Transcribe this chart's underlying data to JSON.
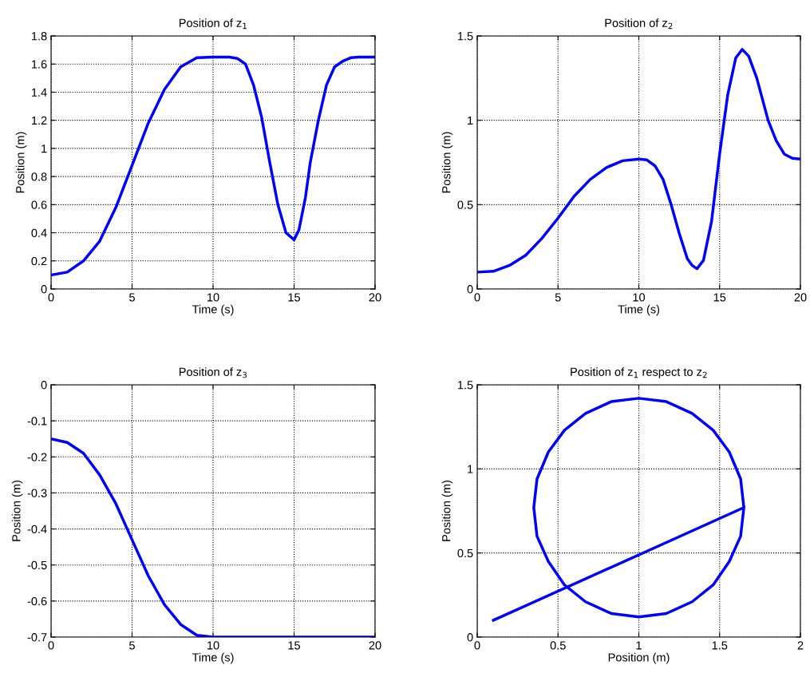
{
  "chart_data": [
    {
      "type": "line",
      "title": "Position of z$_{1}$",
      "xlabel": "Time (s)",
      "ylabel": "Position (m)",
      "x": [
        0,
        1,
        2,
        3,
        4,
        5,
        6,
        7,
        8,
        9,
        10,
        11,
        11.5,
        12,
        12.5,
        13,
        13.5,
        14,
        14.5,
        15,
        15.3,
        15.7,
        16,
        16.5,
        17,
        17.5,
        18,
        18.5,
        19,
        20
      ],
      "series": [
        {
          "color": "#0000ff",
          "values": [
            0.1,
            0.12,
            0.2,
            0.34,
            0.58,
            0.88,
            1.18,
            1.42,
            1.58,
            1.645,
            1.65,
            1.65,
            1.64,
            1.6,
            1.45,
            1.22,
            0.9,
            0.6,
            0.4,
            0.35,
            0.42,
            0.65,
            0.9,
            1.2,
            1.45,
            1.58,
            1.62,
            1.645,
            1.65,
            1.65
          ]
        }
      ],
      "xlim": [
        0,
        20
      ],
      "xticks": [
        0,
        5,
        10,
        15,
        20
      ],
      "ylim": [
        0,
        1.8
      ],
      "yticks": [
        0,
        0.2,
        0.4,
        0.6,
        0.8,
        1,
        1.2,
        1.4,
        1.6,
        1.8
      ],
      "grid": true,
      "line_style": "solid"
    },
    {
      "type": "line",
      "title": "Position of z$_{2}$",
      "xlabel": "Time (s)",
      "ylabel": "Position (m)",
      "x": [
        0,
        1,
        2,
        3,
        4,
        5,
        6,
        7,
        8,
        9,
        10,
        10.5,
        11,
        11.5,
        12,
        12.5,
        13,
        13.3,
        13.6,
        14,
        14.5,
        15,
        15.5,
        16,
        16.4,
        16.8,
        17.3,
        18,
        18.5,
        19,
        19.5,
        20
      ],
      "series": [
        {
          "color": "#0000ff",
          "values": [
            0.1,
            0.105,
            0.14,
            0.2,
            0.3,
            0.42,
            0.55,
            0.65,
            0.72,
            0.76,
            0.77,
            0.765,
            0.73,
            0.65,
            0.5,
            0.33,
            0.18,
            0.14,
            0.12,
            0.17,
            0.4,
            0.8,
            1.15,
            1.37,
            1.42,
            1.38,
            1.25,
            1.0,
            0.88,
            0.8,
            0.775,
            0.77
          ]
        }
      ],
      "xlim": [
        0,
        20
      ],
      "xticks": [
        0,
        5,
        10,
        15,
        20
      ],
      "ylim": [
        0,
        1.5
      ],
      "yticks": [
        0,
        0.5,
        1,
        1.5
      ],
      "grid": true,
      "line_style": "solid"
    },
    {
      "type": "line",
      "title": "Position of z$_{3}$",
      "xlabel": "Time (s)",
      "ylabel": "Position (m)",
      "x": [
        0,
        1,
        2,
        3,
        4,
        5,
        6,
        7,
        8,
        9,
        10,
        20
      ],
      "series": [
        {
          "color": "#0000ff",
          "values": [
            -0.15,
            -0.16,
            -0.19,
            -0.25,
            -0.33,
            -0.43,
            -0.53,
            -0.61,
            -0.665,
            -0.695,
            -0.7,
            -0.7
          ]
        }
      ],
      "xlim": [
        0,
        20
      ],
      "xticks": [
        0,
        5,
        10,
        15,
        20
      ],
      "ylim": [
        -0.7,
        0
      ],
      "yticks": [
        {
          "value": -0.7,
          "label": "-0.7"
        },
        {
          "value": -0.6,
          "label": "-0.6"
        },
        {
          "value": -0.5,
          "label": "-0.5"
        },
        {
          "value": -0.4,
          "label": "-0.4"
        },
        {
          "value": -0.3,
          "label": "-0.3"
        },
        {
          "value": -0.2,
          "label": "-0.2"
        },
        {
          "value": -0.1,
          "label": "-0.1"
        },
        0
      ],
      "grid": true,
      "line_style": "solid"
    },
    {
      "type": "line",
      "title": "Position of z$_{1}$ respect to z$_{2}$",
      "xlabel": "Position (m)",
      "ylabel": "Position (m)",
      "x": [
        0.1,
        1.65,
        1.63,
        1.56,
        1.46,
        1.33,
        1.17,
        1.0,
        0.83,
        0.67,
        0.54,
        0.44,
        0.37,
        0.35,
        0.37,
        0.44,
        0.54,
        0.67,
        0.83,
        1.0,
        1.17,
        1.33,
        1.46,
        1.56,
        1.63,
        1.65
      ],
      "series": [
        {
          "color": "#0000ff",
          "values": [
            0.1,
            0.77,
            0.94,
            1.1,
            1.23,
            1.33,
            1.4,
            1.42,
            1.4,
            1.33,
            1.23,
            1.1,
            0.94,
            0.77,
            0.6,
            0.45,
            0.31,
            0.21,
            0.14,
            0.12,
            0.14,
            0.21,
            0.31,
            0.45,
            0.6,
            0.77
          ]
        }
      ],
      "xlim": [
        0,
        2
      ],
      "xticks": [
        0,
        0.5,
        1,
        1.5,
        2
      ],
      "ylim": [
        0,
        1.5
      ],
      "yticks": [
        0,
        0.5,
        1,
        1.5
      ],
      "grid": true,
      "line_style": "solid"
    }
  ]
}
